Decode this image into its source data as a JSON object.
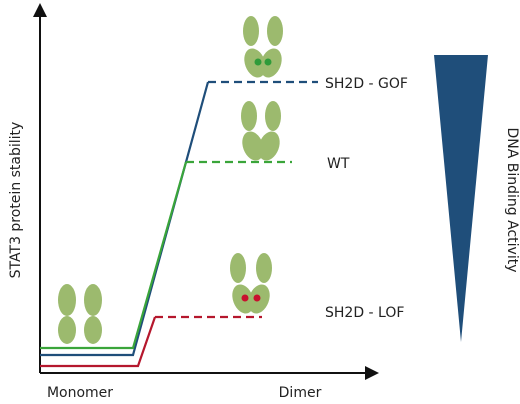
{
  "axes": {
    "y_label": "STAT3 protein stability",
    "x_start": "Monomer",
    "x_end": "Dimer"
  },
  "lines": [
    {
      "label": "SH2D - GOF"
    },
    {
      "label": "WT"
    },
    {
      "label": "SH2D - LOF"
    }
  ],
  "activity_label": "DNA Binding Activity"
}
